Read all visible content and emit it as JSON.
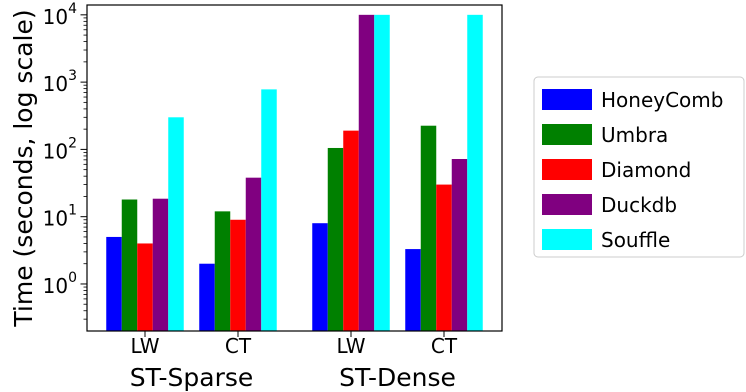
{
  "chart_data": {
    "type": "bar",
    "title": "",
    "xlabel": "",
    "ylabel": "Time (seconds, log scale)",
    "yscale": "log",
    "ylim": [
      0.2,
      14000
    ],
    "y_ticks": [
      {
        "value": 1,
        "base": "10",
        "exp": "0"
      },
      {
        "value": 10,
        "base": "10",
        "exp": "1"
      },
      {
        "value": 100,
        "base": "10",
        "exp": "2"
      },
      {
        "value": 1000,
        "base": "10",
        "exp": "3"
      },
      {
        "value": 10000,
        "base": "10",
        "exp": "4"
      }
    ],
    "groups": [
      {
        "name": "ST-Sparse",
        "categories": [
          "LW",
          "CT"
        ]
      },
      {
        "name": "ST-Dense",
        "categories": [
          "LW",
          "CT"
        ]
      }
    ],
    "categories": [
      "LW",
      "CT",
      "LW",
      "CT"
    ],
    "series": [
      {
        "name": "HoneyComb",
        "color": "#0000ff",
        "values": [
          5.0,
          2.0,
          8.0,
          3.3
        ]
      },
      {
        "name": "Umbra",
        "color": "#008000",
        "values": [
          18,
          12,
          105,
          225
        ]
      },
      {
        "name": "Diamond",
        "color": "#ff0000",
        "values": [
          4.0,
          9.0,
          190,
          30
        ]
      },
      {
        "name": "Duckdb",
        "color": "#800080",
        "values": [
          18.5,
          38,
          10000,
          72
        ]
      },
      {
        "name": "Souffle",
        "color": "#00ffff",
        "values": [
          300,
          780,
          10000,
          10000
        ]
      }
    ],
    "grid": false,
    "legend_position": "right"
  }
}
